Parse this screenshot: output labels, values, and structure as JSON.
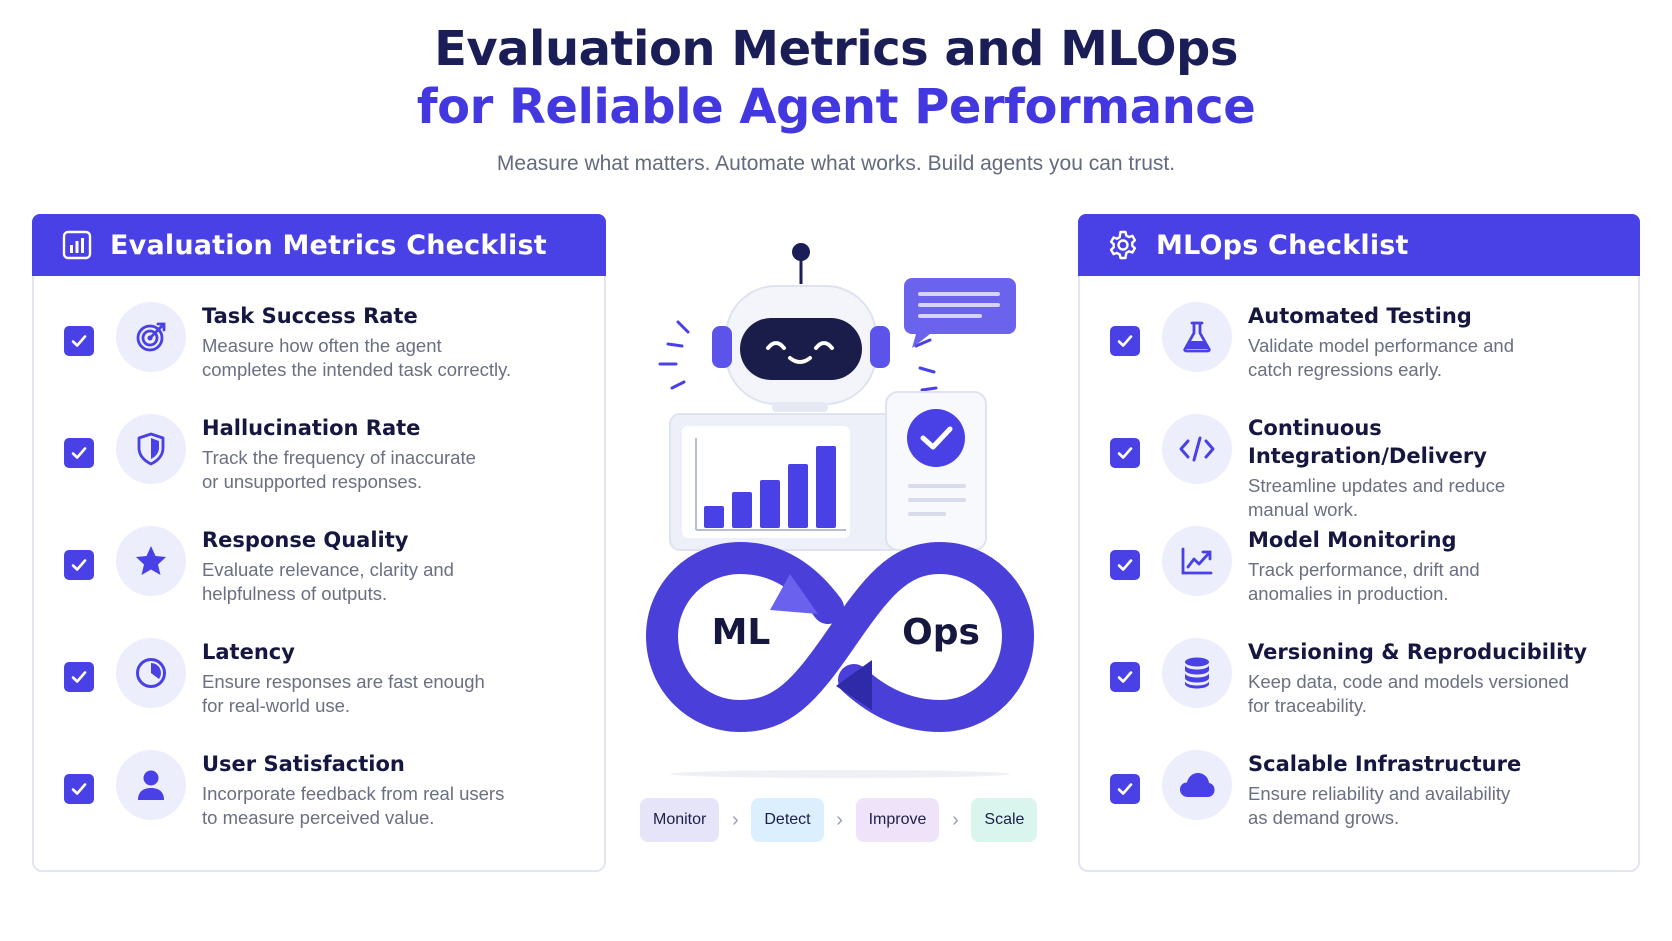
{
  "header": {
    "title_line1": "Evaluation Metrics and MLOps",
    "title_line2": "for Reliable Agent Performance",
    "subtitle": "Measure what matters. Automate what works. Build agents you can trust."
  },
  "left_panel": {
    "title": "Evaluation Metrics Checklist",
    "icon": "bar-chart-icon",
    "items": [
      {
        "title": "Task Success Rate",
        "line1": "Measure how often the agent",
        "line2": "completes the intended task correctly.",
        "icon": "target-icon"
      },
      {
        "title": "Hallucination Rate",
        "line1": "Track the frequency of inaccurate",
        "line2": "or unsupported responses.",
        "icon": "shield-icon"
      },
      {
        "title": "Response Quality",
        "line1": "Evaluate relevance, clarity and",
        "line2": "helpfulness of outputs.",
        "icon": "star-icon"
      },
      {
        "title": "Latency",
        "line1": "Ensure responses are fast enough",
        "line2": "for real-world use.",
        "icon": "clock-icon"
      },
      {
        "title": "User Satisfaction",
        "line1": "Incorporate feedback from real users",
        "line2": "to measure perceived value.",
        "icon": "user-icon"
      }
    ]
  },
  "right_panel": {
    "title": "MLOps Checklist",
    "icon": "gear-icon",
    "items": [
      {
        "title": "Automated Testing",
        "line1": "Validate model performance and",
        "line2": "catch regressions early.",
        "icon": "flask-icon"
      },
      {
        "title": "Continuous Integration/Delivery",
        "line1": "Streamline updates and reduce",
        "line2": "manual work.",
        "icon": "code-icon"
      },
      {
        "title": "Model Monitoring",
        "line1": "Track performance, drift and",
        "line2": "anomalies in production.",
        "icon": "line-chart-icon"
      },
      {
        "title": "Versioning & Reproducibility",
        "line1": "Keep data, code and models versioned",
        "line2": "for traceability.",
        "icon": "database-icon"
      },
      {
        "title": "Scalable Infrastructure",
        "line1": "Ensure reliability and availability",
        "line2": "as demand grows.",
        "icon": "cloud-icon"
      }
    ]
  },
  "illustration": {
    "loop_left": "ML",
    "loop_right": "Ops"
  },
  "pipeline": [
    "Monitor",
    "Detect",
    "Improve",
    "Scale"
  ],
  "colors": {
    "accent": "#4940e6",
    "title_dark": "#1b1d57",
    "title_accent": "#4338e0",
    "icon_bg": "#eceefb",
    "pill_monitor": "#e6e4f8",
    "pill_detect": "#dcefff",
    "pill_improve": "#efe3fa",
    "pill_scale": "#d9f5ee"
  }
}
